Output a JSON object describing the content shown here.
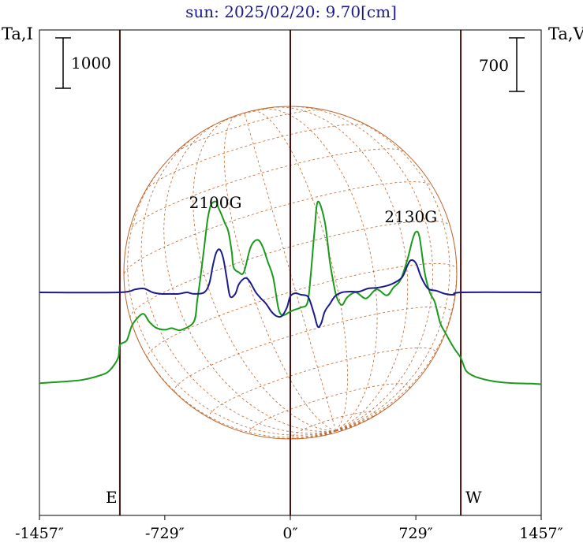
{
  "chart_data": {
    "type": "line",
    "title": "sun: 2025/02/20: 9.70[cm]",
    "ylabel_left": "Ta,I",
    "ylabel_right": "Ta,V",
    "xlim": [
      -1457,
      1457
    ],
    "x_ticks": [
      {
        "value": -1457,
        "label": "-1457″"
      },
      {
        "value": -729,
        "label": "-729″"
      },
      {
        "value": 0,
        "label": "0″"
      },
      {
        "value": 729,
        "label": "729″"
      },
      {
        "value": 1457,
        "label": "1457″"
      }
    ],
    "scale_left": {
      "label": "1000"
    },
    "scale_right": {
      "label": "700"
    },
    "vertical_lines": [
      -990,
      0,
      990
    ],
    "limb_labels": {
      "east": "E",
      "west": "W"
    },
    "annotations": [
      {
        "text": "2100G",
        "x": -435
      },
      {
        "text": "2130G",
        "x": 700
      }
    ],
    "series": [
      {
        "name": "I",
        "color": "#1a9a1a",
        "x": [
          -1457,
          -1300,
          -1200,
          -1100,
          -1050,
          -1000,
          -990,
          -950,
          -920,
          -880,
          -850,
          -820,
          -780,
          -730,
          -690,
          -660,
          -630,
          -560,
          -540,
          -520,
          -500,
          -480,
          -460,
          -430,
          -420,
          -400,
          -380,
          -360,
          -340,
          -330,
          -300,
          -270,
          -230,
          -190,
          -160,
          -130,
          -100,
          -70,
          -50,
          -30,
          -10,
          0,
          20,
          60,
          100,
          120,
          140,
          160,
          200,
          230,
          250,
          270,
          300,
          330,
          380,
          440,
          500,
          560,
          600,
          640,
          680,
          710,
          730,
          750,
          780,
          810,
          840,
          870,
          900,
          950,
          990,
          1020,
          1060,
          1100,
          1160,
          1220,
          1300,
          1400,
          1457
        ],
        "y": [
          -1800,
          -1765,
          -1730,
          -1640,
          -1550,
          -1300,
          -1045,
          -950,
          -660,
          -480,
          -430,
          -580,
          -700,
          -740,
          -710,
          -740,
          -740,
          -580,
          -150,
          350,
          900,
          1450,
          1740,
          1800,
          1700,
          1545,
          1370,
          1210,
          800,
          500,
          400,
          400,
          900,
          1040,
          900,
          600,
          300,
          -300,
          -450,
          -440,
          -400,
          -380,
          -350,
          -300,
          -200,
          400,
          1200,
          1800,
          1400,
          600,
          200,
          -100,
          -250,
          -100,
          0,
          -120,
          60,
          -60,
          100,
          250,
          650,
          1050,
          1200,
          1100,
          400,
          0,
          -200,
          -600,
          -800,
          -1100,
          -1300,
          -1550,
          -1650,
          -1700,
          -1750,
          -1780,
          -1800,
          -1810,
          -1820
        ]
      },
      {
        "name": "V",
        "color": "#1a1a8c",
        "x": [
          -1457,
          -1000,
          -900,
          -850,
          -800,
          -750,
          -700,
          -650,
          -600,
          -560,
          -500,
          -470,
          -450,
          -430,
          -410,
          -390,
          -370,
          -350,
          -320,
          -300,
          -270,
          -250,
          -230,
          -200,
          -170,
          -140,
          -110,
          -80,
          -50,
          -20,
          0,
          30,
          60,
          100,
          120,
          140,
          160,
          180,
          200,
          230,
          260,
          300,
          350,
          400,
          450,
          500,
          550,
          600,
          650,
          680,
          700,
          730,
          760,
          800,
          850,
          900,
          950,
          1000,
          1457
        ],
        "y": [
          0,
          0,
          40,
          50,
          0,
          -20,
          -20,
          -20,
          0,
          -20,
          0,
          120,
          350,
          520,
          560,
          450,
          200,
          -50,
          -20,
          100,
          180,
          180,
          120,
          0,
          -80,
          -150,
          -250,
          -310,
          -310,
          -200,
          -50,
          -10,
          -30,
          -50,
          -150,
          -300,
          -450,
          -400,
          -250,
          -150,
          -50,
          0,
          10,
          10,
          50,
          60,
          80,
          120,
          200,
          350,
          420,
          380,
          200,
          50,
          20,
          -20,
          -30,
          0,
          0
        ]
      }
    ]
  }
}
